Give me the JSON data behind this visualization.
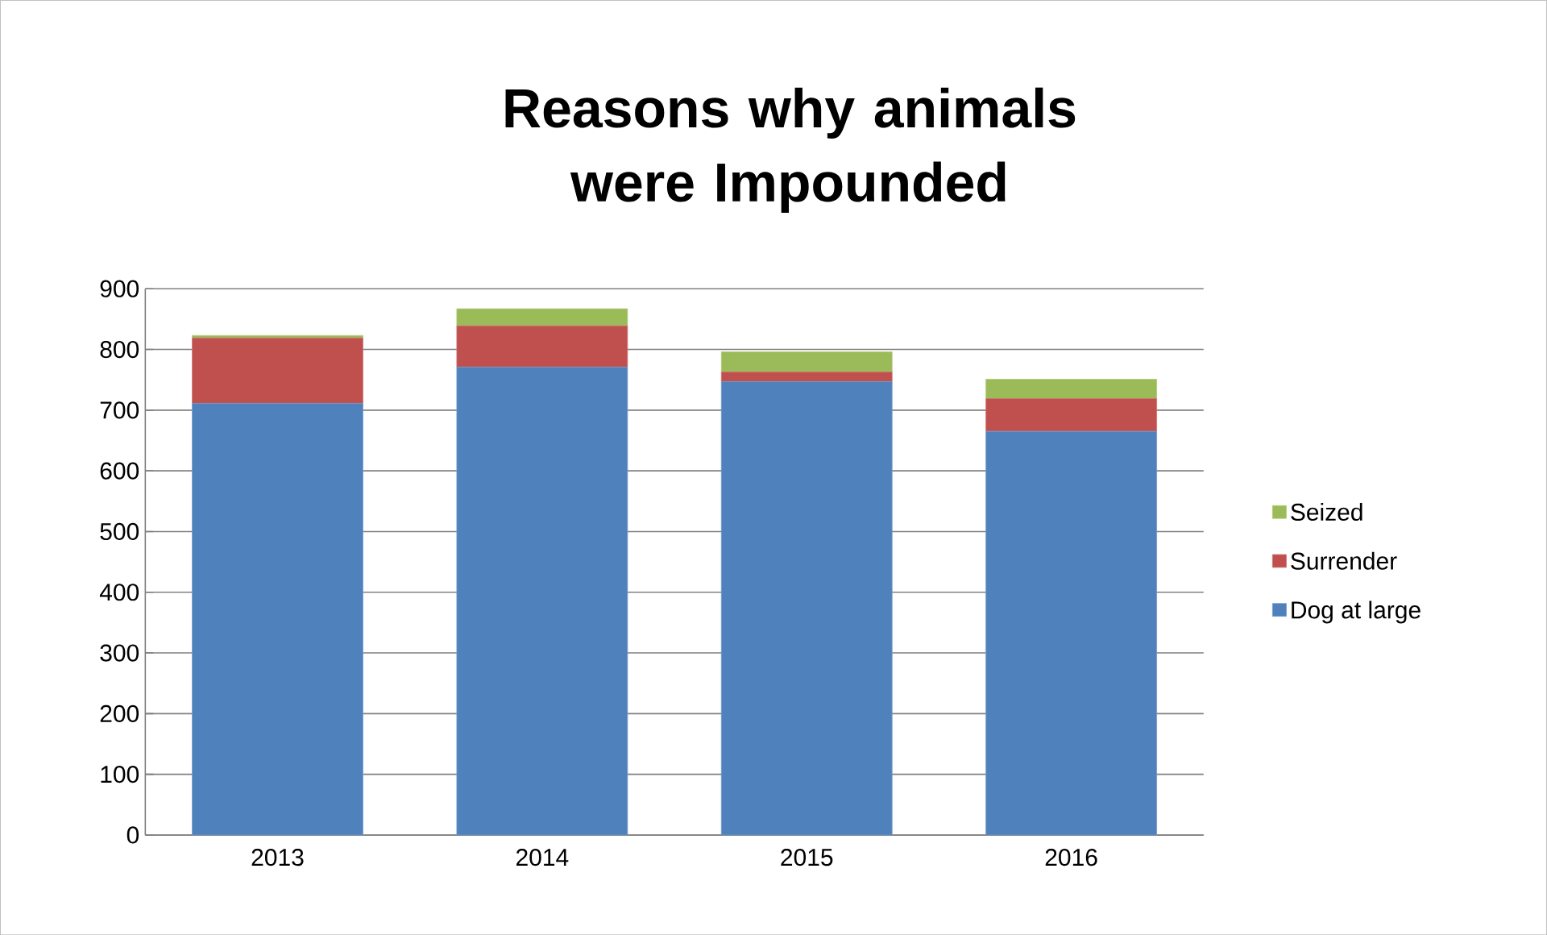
{
  "chart_data": {
    "type": "bar",
    "stacked": true,
    "title": "Reasons why animals were Impounded",
    "categories": [
      "2013",
      "2014",
      "2015",
      "2016"
    ],
    "series": [
      {
        "name": "Dog at large",
        "color": "#4f81bd",
        "values": [
          711,
          771,
          747,
          665
        ]
      },
      {
        "name": "Surrender",
        "color": "#c0504d",
        "values": [
          108,
          68,
          16,
          54
        ]
      },
      {
        "name": "Seized",
        "color": "#9bbb59",
        "values": [
          4,
          28,
          33,
          32
        ]
      }
    ],
    "ylim": [
      0,
      900
    ],
    "yticks": [
      0,
      100,
      200,
      300,
      400,
      500,
      600,
      700,
      800,
      900
    ],
    "grid": "y",
    "legend": "right"
  }
}
